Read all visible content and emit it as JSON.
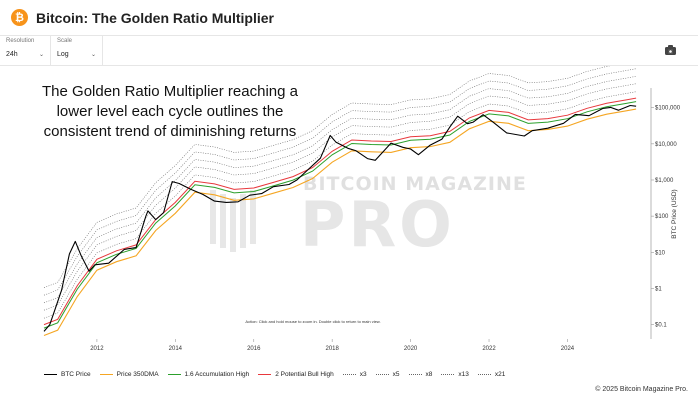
{
  "page": {
    "title": "Bitcoin: The Golden Ratio Multiplier",
    "copyright": "© 2025 Bitcoin Magazine Pro."
  },
  "controls": {
    "resolution": {
      "label": "Resolution",
      "value": "24h"
    },
    "scale": {
      "label": "Scale",
      "value": "Log"
    }
  },
  "annotation": {
    "lines": [
      "The Golden Ratio Multiplier reaching a",
      "lower level each cycle outlines the",
      "consistent trend of diminishing returns"
    ]
  },
  "watermark": {
    "line1": "BITCOIN MAGAZINE",
    "line2": "PRO"
  },
  "hint_text": "Action: Click and hold mouse to zoom in. Double click to return to main view.",
  "colors": {
    "btc_price": "#000000",
    "dma350": "#f5a623",
    "accum": "#2ca02c",
    "bull": "#e8383d",
    "multiples": "#666666",
    "icon": "#f7931a"
  },
  "legend": [
    {
      "label": "BTC Price",
      "color": "#000000",
      "style": "solid"
    },
    {
      "label": "Price 350DMA",
      "color": "#f5a623",
      "style": "solid"
    },
    {
      "label": "1.6 Accumulation High",
      "color": "#2ca02c",
      "style": "solid"
    },
    {
      "label": "2 Potential Bull High",
      "color": "#e8383d",
      "style": "solid"
    },
    {
      "label": "x3",
      "color": "#666666",
      "style": "dotted"
    },
    {
      "label": "x5",
      "color": "#666666",
      "style": "dotted"
    },
    {
      "label": "x8",
      "color": "#666666",
      "style": "dotted"
    },
    {
      "label": "x13",
      "color": "#666666",
      "style": "dotted"
    },
    {
      "label": "x21",
      "color": "#666666",
      "style": "dotted"
    }
  ],
  "chart_data": {
    "type": "line",
    "title": "",
    "xlabel": "",
    "ylabel": "BTC Price (USD)",
    "yscale": "log",
    "xlim": [
      2010.6,
      2025.85
    ],
    "ylim": [
      0.04,
      350000
    ],
    "x_ticks": [
      {
        "value": 2012,
        "label": "2012"
      },
      {
        "value": 2014,
        "label": "2014"
      },
      {
        "value": 2016,
        "label": "2016"
      },
      {
        "value": 2018,
        "label": "2018"
      },
      {
        "value": 2020,
        "label": "2020"
      },
      {
        "value": 2022,
        "label": "2022"
      },
      {
        "value": 2024,
        "label": "2024"
      }
    ],
    "y_ticks": [
      {
        "value": 0.1,
        "label": "$0.1"
      },
      {
        "value": 1,
        "label": "$1"
      },
      {
        "value": 10,
        "label": "$10"
      },
      {
        "value": 100,
        "label": "$100"
      },
      {
        "value": 1000,
        "label": "$1,000"
      },
      {
        "value": 10000,
        "label": "$10,000"
      },
      {
        "value": 100000,
        "label": "$100,000"
      }
    ],
    "grid": false,
    "legend_position": "bottom",
    "dma_multipliers": [
      1.6,
      2,
      3,
      5,
      8,
      13,
      21
    ],
    "series": [
      {
        "name": "BTC Price",
        "x": [
          2010.65,
          2010.8,
          2010.95,
          2011.1,
          2011.3,
          2011.45,
          2011.6,
          2011.8,
          2011.95,
          2012.3,
          2012.7,
          2013.0,
          2013.25,
          2013.3,
          2013.5,
          2013.7,
          2013.92,
          2014.1,
          2014.4,
          2014.7,
          2015.0,
          2015.3,
          2015.6,
          2015.9,
          2016.2,
          2016.5,
          2016.9,
          2017.1,
          2017.4,
          2017.7,
          2017.95,
          2018.1,
          2018.4,
          2018.6,
          2018.9,
          2019.1,
          2019.5,
          2019.8,
          2020.0,
          2020.2,
          2020.5,
          2020.8,
          2021.0,
          2021.2,
          2021.45,
          2021.6,
          2021.85,
          2022.1,
          2022.45,
          2022.9,
          2023.1,
          2023.5,
          2023.9,
          2024.2,
          2024.55,
          2024.9,
          2025.1,
          2025.3,
          2025.6,
          2025.75
        ],
        "values": [
          0.065,
          0.1,
          0.3,
          0.9,
          9,
          20,
          8,
          3,
          4.5,
          5,
          12,
          13.5,
          100,
          140,
          80,
          125,
          900,
          800,
          550,
          400,
          260,
          240,
          250,
          380,
          420,
          650,
          750,
          1000,
          2000,
          4000,
          17000,
          11000,
          7500,
          6500,
          3900,
          3500,
          10500,
          8000,
          7200,
          5000,
          9200,
          13500,
          29000,
          58000,
          36000,
          40000,
          64000,
          40000,
          20000,
          16500,
          23000,
          27000,
          37000,
          65000,
          60000,
          95000,
          102000,
          85000,
          115000,
          110000
        ]
      },
      {
        "name": "Price 350DMA",
        "x": [
          2010.65,
          2011.0,
          2011.5,
          2012.0,
          2012.5,
          2013.0,
          2013.5,
          2014.0,
          2014.5,
          2015.0,
          2015.5,
          2016.0,
          2016.5,
          2017.0,
          2017.5,
          2018.0,
          2018.5,
          2019.0,
          2019.5,
          2020.0,
          2020.5,
          2021.0,
          2021.5,
          2022.0,
          2022.5,
          2023.0,
          2023.5,
          2024.0,
          2024.5,
          2025.0,
          2025.5,
          2025.75
        ],
        "values": [
          0.05,
          0.07,
          0.6,
          3.2,
          5.5,
          8,
          40,
          120,
          460,
          390,
          275,
          300,
          430,
          620,
          1100,
          3100,
          6400,
          6000,
          5800,
          7800,
          8400,
          11000,
          26000,
          42000,
          37000,
          23000,
          25000,
          31000,
          48000,
          66000,
          82000,
          92000
        ]
      }
    ]
  }
}
